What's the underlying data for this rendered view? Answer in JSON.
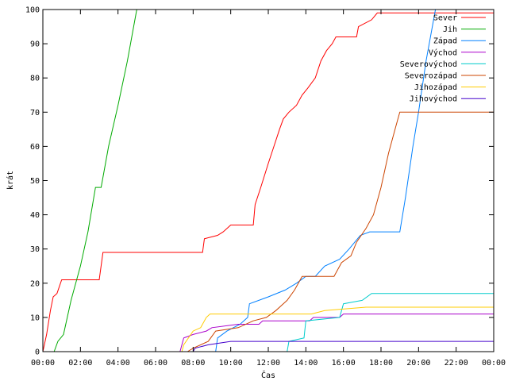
{
  "chart_data": {
    "type": "line",
    "xlabel": "Čas",
    "ylabel": "krát",
    "xlim": [
      0,
      24
    ],
    "ylim": [
      0,
      100
    ],
    "x_ticks": [
      {
        "value": 0,
        "label": "00:00"
      },
      {
        "value": 2,
        "label": "02:00"
      },
      {
        "value": 4,
        "label": "04:00"
      },
      {
        "value": 6,
        "label": "06:00"
      },
      {
        "value": 8,
        "label": "08:00"
      },
      {
        "value": 10,
        "label": "10:00"
      },
      {
        "value": 12,
        "label": "12:00"
      },
      {
        "value": 14,
        "label": "14:00"
      },
      {
        "value": 16,
        "label": "16:00"
      },
      {
        "value": 18,
        "label": "18:00"
      },
      {
        "value": 20,
        "label": "20:00"
      },
      {
        "value": 22,
        "label": "22:00"
      },
      {
        "value": 24,
        "label": "00:00"
      }
    ],
    "y_ticks": [
      0,
      10,
      20,
      30,
      40,
      50,
      60,
      70,
      80,
      90,
      100
    ],
    "grid": false,
    "legend_position": "top-right",
    "series": [
      {
        "name": "Sever",
        "color": "#ff0000",
        "points": [
          [
            0,
            0
          ],
          [
            0.2,
            5
          ],
          [
            0.4,
            12
          ],
          [
            0.55,
            16
          ],
          [
            0.75,
            17
          ],
          [
            1.0,
            21
          ],
          [
            3.0,
            21
          ],
          [
            3.2,
            29
          ],
          [
            8.5,
            29
          ],
          [
            8.6,
            33
          ],
          [
            9.3,
            34
          ],
          [
            9.6,
            35
          ],
          [
            10.0,
            37
          ],
          [
            11.2,
            37
          ],
          [
            11.3,
            43
          ],
          [
            11.6,
            48
          ],
          [
            12.0,
            55
          ],
          [
            12.3,
            60
          ],
          [
            12.6,
            65
          ],
          [
            12.8,
            68
          ],
          [
            13.1,
            70
          ],
          [
            13.5,
            72
          ],
          [
            13.8,
            75
          ],
          [
            14.1,
            77
          ],
          [
            14.5,
            80
          ],
          [
            14.8,
            85
          ],
          [
            15.1,
            88
          ],
          [
            15.4,
            90
          ],
          [
            15.6,
            92
          ],
          [
            16.7,
            92
          ],
          [
            16.8,
            95
          ],
          [
            17.5,
            97
          ],
          [
            17.8,
            99
          ],
          [
            24,
            99
          ]
        ]
      },
      {
        "name": "Jih",
        "color": "#00aa00",
        "points": [
          [
            0.6,
            0
          ],
          [
            0.8,
            3
          ],
          [
            1.1,
            5
          ],
          [
            1.5,
            15
          ],
          [
            2.0,
            25
          ],
          [
            2.4,
            35
          ],
          [
            2.8,
            48
          ],
          [
            3.1,
            48
          ],
          [
            3.5,
            60
          ],
          [
            4.0,
            72
          ],
          [
            4.5,
            85
          ],
          [
            5.0,
            100
          ]
        ]
      },
      {
        "name": "Západ",
        "color": "#0080ff",
        "points": [
          [
            9.2,
            0
          ],
          [
            9.3,
            4
          ],
          [
            9.8,
            6
          ],
          [
            10.5,
            8
          ],
          [
            10.9,
            10
          ],
          [
            11.0,
            14
          ],
          [
            12.0,
            16
          ],
          [
            12.9,
            18
          ],
          [
            13.5,
            20
          ],
          [
            14.0,
            22
          ],
          [
            14.5,
            22
          ],
          [
            15.0,
            25
          ],
          [
            15.8,
            27
          ],
          [
            16.3,
            30
          ],
          [
            16.9,
            34
          ],
          [
            17.4,
            35
          ],
          [
            19.0,
            35
          ],
          [
            19.3,
            45
          ],
          [
            19.7,
            60
          ],
          [
            20.0,
            70
          ],
          [
            20.4,
            85
          ],
          [
            20.9,
            100
          ]
        ]
      },
      {
        "name": "Východ",
        "color": "#aa00cc",
        "points": [
          [
            7.3,
            0
          ],
          [
            7.5,
            4
          ],
          [
            8.0,
            5
          ],
          [
            8.7,
            6
          ],
          [
            9.0,
            7
          ],
          [
            10.4,
            8
          ],
          [
            11.5,
            8
          ],
          [
            11.7,
            9
          ],
          [
            13.2,
            9
          ],
          [
            14.2,
            9
          ],
          [
            14.4,
            10
          ],
          [
            15.8,
            10
          ],
          [
            16.0,
            11
          ],
          [
            24,
            11
          ]
        ]
      },
      {
        "name": "Severovýchod",
        "color": "#00cccc",
        "points": [
          [
            13.0,
            0
          ],
          [
            13.1,
            3
          ],
          [
            13.9,
            4
          ],
          [
            14.0,
            9
          ],
          [
            15.8,
            10
          ],
          [
            16.0,
            14
          ],
          [
            17.0,
            15
          ],
          [
            17.5,
            17
          ],
          [
            24,
            17
          ]
        ]
      },
      {
        "name": "Severozápad",
        "color": "#cc4400",
        "points": [
          [
            7.7,
            0
          ],
          [
            8.0,
            1
          ],
          [
            8.8,
            3
          ],
          [
            9.2,
            6
          ],
          [
            10.4,
            7
          ],
          [
            11.2,
            9
          ],
          [
            11.9,
            10
          ],
          [
            12.4,
            12
          ],
          [
            13.0,
            15
          ],
          [
            13.4,
            18
          ],
          [
            13.8,
            22
          ],
          [
            14.2,
            22
          ],
          [
            15.5,
            22
          ],
          [
            15.9,
            26
          ],
          [
            16.4,
            28
          ],
          [
            16.7,
            32
          ],
          [
            17.2,
            36
          ],
          [
            17.6,
            40
          ],
          [
            18.0,
            48
          ],
          [
            18.4,
            58
          ],
          [
            18.8,
            66
          ],
          [
            19.0,
            70
          ],
          [
            24,
            70
          ]
        ]
      },
      {
        "name": "Jihozápad",
        "color": "#ffcc00",
        "points": [
          [
            7.4,
            0
          ],
          [
            7.5,
            2
          ],
          [
            8.0,
            6
          ],
          [
            8.4,
            7
          ],
          [
            8.7,
            10
          ],
          [
            8.9,
            11
          ],
          [
            14.3,
            11
          ],
          [
            15.0,
            12
          ],
          [
            17.2,
            13
          ],
          [
            24,
            13
          ]
        ]
      },
      {
        "name": "Jihovýchod",
        "color": "#4400cc",
        "points": [
          [
            8.0,
            0
          ],
          [
            8.1,
            1
          ],
          [
            8.8,
            2
          ],
          [
            10.0,
            3
          ],
          [
            13.5,
            3
          ],
          [
            24,
            3
          ]
        ]
      }
    ]
  }
}
